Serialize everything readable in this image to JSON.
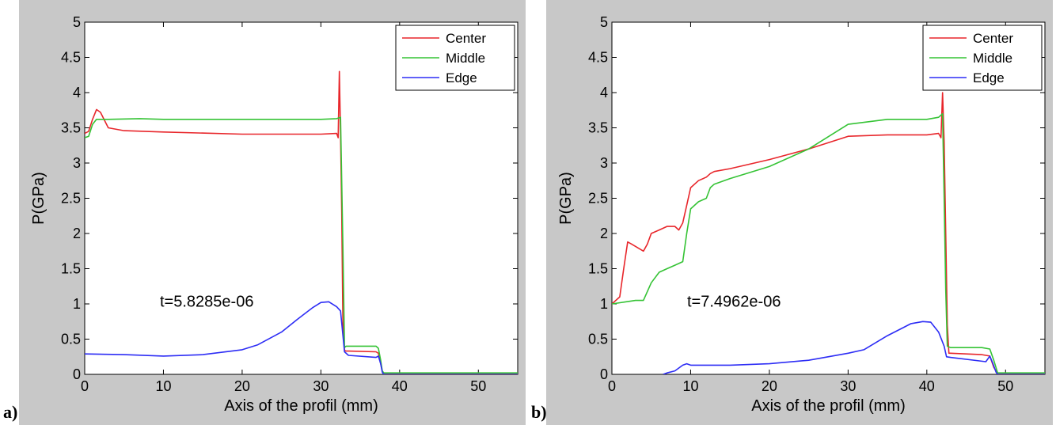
{
  "chart_data": [
    {
      "type": "line",
      "panel_label": "a)",
      "xlabel": "Axis of the profil (mm)",
      "ylabel": "P(GPa)",
      "xlim": [
        0,
        55
      ],
      "ylim": [
        0,
        5
      ],
      "xticks": [
        0,
        10,
        20,
        30,
        40,
        50
      ],
      "yticks": [
        0,
        0.5,
        1,
        1.5,
        2,
        2.5,
        3,
        3.5,
        4,
        4.5,
        5
      ],
      "grid": false,
      "legend_position": "top-right",
      "annotation": "t=5.8285e-06",
      "series": [
        {
          "name": "Center",
          "color": "#e8262b",
          "x": [
            0,
            0.5,
            1,
            1.5,
            2,
            3,
            5,
            10,
            20,
            30,
            32,
            32.2,
            32.35,
            32.5,
            32.65,
            32.8,
            33,
            33.2,
            33.5,
            37,
            37.3,
            37.6,
            37.8,
            38,
            55
          ],
          "y": [
            3.42,
            3.45,
            3.62,
            3.76,
            3.72,
            3.5,
            3.46,
            3.44,
            3.41,
            3.41,
            3.42,
            3.36,
            4.3,
            3.4,
            2.3,
            0.7,
            0.34,
            0.33,
            0.33,
            0.32,
            0.3,
            0.15,
            0.05,
            0.01,
            0.01
          ]
        },
        {
          "name": "Middle",
          "color": "#35c335",
          "x": [
            0,
            0.5,
            1,
            1.5,
            2,
            3,
            7,
            10,
            20,
            30,
            32,
            32.5,
            32.8,
            33,
            33.2,
            33.5,
            37,
            37.3,
            37.6,
            37.8,
            38,
            55
          ],
          "y": [
            3.36,
            3.38,
            3.55,
            3.62,
            3.62,
            3.62,
            3.63,
            3.62,
            3.62,
            3.62,
            3.63,
            3.65,
            1.8,
            0.38,
            0.4,
            0.4,
            0.4,
            0.37,
            0.2,
            0.05,
            0.02,
            0.02
          ]
        },
        {
          "name": "Edge",
          "color": "#2d2df5",
          "x": [
            0,
            5,
            10,
            15,
            20,
            22,
            25,
            27,
            29,
            30,
            31,
            32,
            32.5,
            33,
            33.5,
            37,
            37.3,
            37.6,
            37.8,
            38,
            55
          ],
          "y": [
            0.29,
            0.28,
            0.26,
            0.28,
            0.35,
            0.42,
            0.6,
            0.78,
            0.95,
            1.02,
            1.03,
            0.96,
            0.9,
            0.32,
            0.27,
            0.24,
            0.26,
            0.15,
            0.03,
            0.0,
            0.0
          ]
        }
      ]
    },
    {
      "type": "line",
      "panel_label": "b)",
      "xlabel": "Axis of the profil (mm)",
      "ylabel": "P(GPa)",
      "xlim": [
        0,
        55
      ],
      "ylim": [
        0,
        5
      ],
      "xticks": [
        0,
        10,
        20,
        30,
        40,
        50
      ],
      "yticks": [
        0,
        0.5,
        1,
        1.5,
        2,
        2.5,
        3,
        3.5,
        4,
        4.5,
        5
      ],
      "grid": false,
      "legend_position": "top-right",
      "annotation": "t=7.4962e-06",
      "series": [
        {
          "name": "Center",
          "color": "#e8262b",
          "x": [
            0,
            1,
            1.5,
            2,
            2.5,
            4,
            4.5,
            5,
            6,
            7,
            8,
            8.5,
            9,
            9.5,
            10,
            11,
            12,
            12.5,
            13,
            15,
            20,
            25,
            30,
            35,
            40,
            41.5,
            41.8,
            42,
            42.2,
            42.4,
            42.6,
            42.8,
            43,
            47,
            48,
            48.5,
            49,
            55
          ],
          "y": [
            1.0,
            1.1,
            1.5,
            1.88,
            1.85,
            1.75,
            1.85,
            2.0,
            2.05,
            2.1,
            2.1,
            2.05,
            2.15,
            2.4,
            2.65,
            2.75,
            2.8,
            2.85,
            2.88,
            2.92,
            3.05,
            3.2,
            3.38,
            3.4,
            3.4,
            3.42,
            3.36,
            4.0,
            3.3,
            2.0,
            0.7,
            0.3,
            0.3,
            0.28,
            0.26,
            0.1,
            0.01,
            0.01
          ]
        },
        {
          "name": "Middle",
          "color": "#35c335",
          "x": [
            0,
            3,
            4,
            5,
            6,
            7,
            8,
            9,
            9.5,
            10,
            11,
            12,
            12.5,
            13,
            15,
            20,
            25,
            30,
            35,
            40,
            41.5,
            42,
            42.2,
            42.4,
            42.6,
            43,
            47,
            48,
            48.5,
            49,
            55
          ],
          "y": [
            1.0,
            1.05,
            1.05,
            1.3,
            1.45,
            1.5,
            1.55,
            1.6,
            2.0,
            2.35,
            2.45,
            2.5,
            2.65,
            2.7,
            2.78,
            2.95,
            3.2,
            3.55,
            3.62,
            3.62,
            3.65,
            3.7,
            2.5,
            1.2,
            0.4,
            0.38,
            0.38,
            0.36,
            0.2,
            0.02,
            0.02
          ]
        },
        {
          "name": "Edge",
          "color": "#2d2df5",
          "x": [
            6.5,
            7,
            8,
            9,
            9.5,
            10,
            15,
            20,
            25,
            30,
            32,
            35,
            38,
            39.5,
            40.5,
            41.5,
            42.2,
            42.5,
            43,
            47.5,
            48,
            48.4,
            48.8,
            49,
            55
          ],
          "y": [
            0.0,
            0.02,
            0.05,
            0.13,
            0.15,
            0.13,
            0.13,
            0.15,
            0.2,
            0.3,
            0.35,
            0.55,
            0.72,
            0.75,
            0.74,
            0.6,
            0.4,
            0.25,
            0.24,
            0.18,
            0.26,
            0.15,
            0.03,
            0.0,
            0.0
          ]
        }
      ]
    }
  ]
}
